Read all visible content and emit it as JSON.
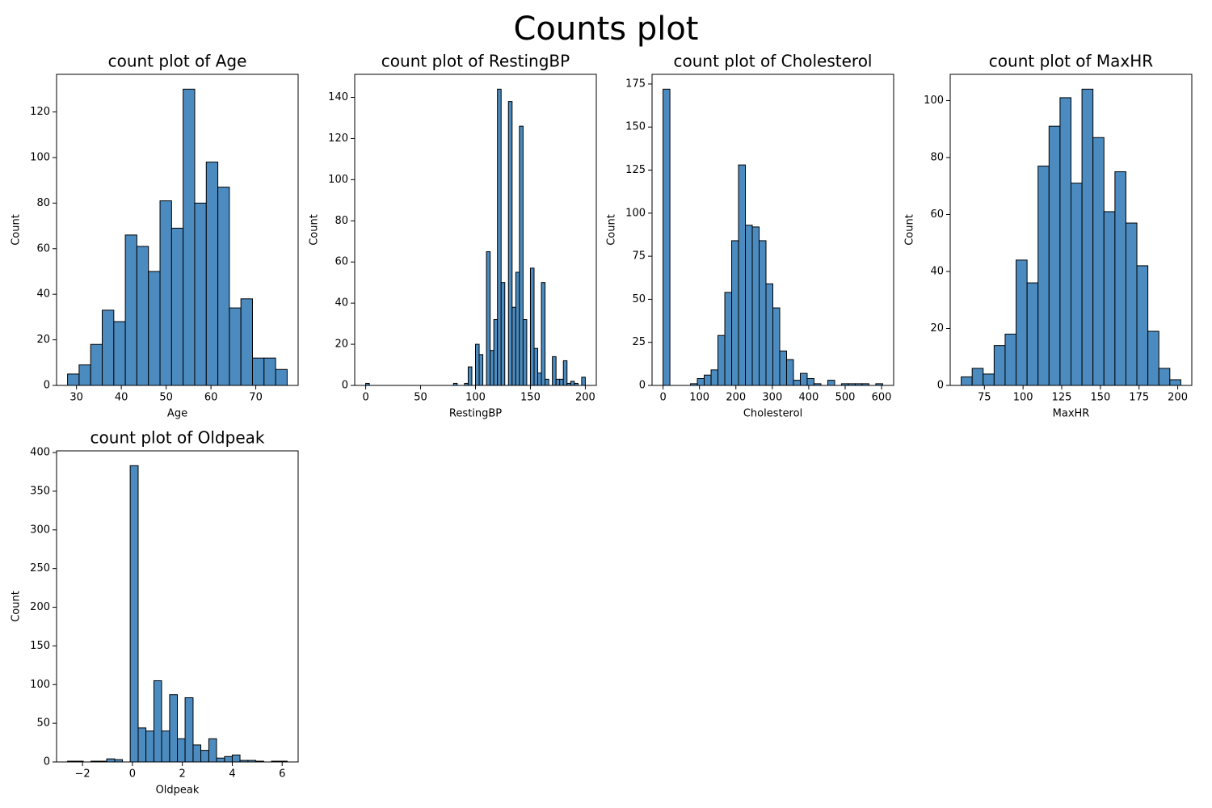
{
  "title": "Counts plot",
  "chart_data": [
    {
      "type": "histogram",
      "title": "count plot of Age",
      "xlabel": "Age",
      "ylabel": "Count",
      "color": "#4c8bbf",
      "bins": [
        28,
        30.58,
        33.16,
        35.74,
        38.32,
        40.89,
        43.47,
        46.05,
        48.63,
        51.21,
        53.79,
        56.37,
        58.95,
        61.53,
        64.11,
        66.68,
        69.26,
        71.84,
        74.42,
        77
      ],
      "values": [
        5,
        9,
        18,
        33,
        28,
        66,
        61,
        50,
        81,
        69,
        130,
        80,
        98,
        87,
        34,
        38,
        12,
        12,
        7
      ],
      "xlim": [
        25.55,
        79.45
      ],
      "xticks": [
        30,
        40,
        50,
        60,
        70
      ],
      "ylim": [
        0,
        136.5
      ],
      "yticks": [
        0,
        20,
        40,
        60,
        80,
        100,
        120
      ]
    },
    {
      "type": "histogram",
      "title": "count plot of RestingBP",
      "xlabel": "RestingBP",
      "ylabel": "Count",
      "color": "#4c8bbf",
      "bins": [
        0,
        3.33,
        6.67,
        10,
        13.33,
        16.67,
        20,
        23.33,
        26.67,
        30,
        33.33,
        36.67,
        40,
        43.33,
        46.67,
        50,
        53.33,
        56.67,
        60,
        63.33,
        66.67,
        70,
        73.33,
        76.67,
        80,
        83.33,
        86.67,
        90,
        93.33,
        96.67,
        100,
        103.33,
        106.67,
        110,
        113.33,
        116.67,
        120,
        123.33,
        126.67,
        130,
        133.33,
        136.67,
        140,
        143.33,
        146.67,
        150,
        153.33,
        156.67,
        160,
        163.33,
        166.67,
        170,
        173.33,
        176.67,
        180,
        183.33,
        186.67,
        190,
        193.33,
        196.67,
        200
      ],
      "values": [
        1,
        0,
        0,
        0,
        0,
        0,
        0,
        0,
        0,
        0,
        0,
        0,
        0,
        0,
        0,
        0,
        0,
        0,
        0,
        0,
        0,
        0,
        0,
        0,
        1,
        0,
        0,
        1,
        9,
        0,
        20,
        15,
        0,
        65,
        17,
        32,
        144,
        50,
        0,
        138,
        38,
        55,
        126,
        32,
        0,
        57,
        18,
        6,
        50,
        3,
        0,
        14,
        3,
        3,
        12,
        1,
        2,
        1,
        0,
        4
      ],
      "xlim": [
        -10,
        210
      ],
      "xticks": [
        0,
        50,
        100,
        150,
        200
      ],
      "ylim": [
        0,
        151.2
      ],
      "yticks": [
        0,
        20,
        40,
        60,
        80,
        100,
        120,
        140
      ]
    },
    {
      "type": "histogram",
      "title": "count plot of Cholesterol",
      "xlabel": "Cholesterol",
      "ylabel": "Count",
      "color": "#4c8bbf",
      "bins": [
        0,
        18.84,
        37.69,
        56.53,
        75.38,
        94.22,
        113.06,
        131.91,
        150.75,
        169.59,
        188.44,
        207.28,
        226.13,
        244.97,
        263.81,
        282.66,
        301.5,
        320.34,
        339.19,
        358.03,
        376.88,
        395.72,
        414.56,
        433.41,
        452.25,
        471.09,
        489.94,
        508.78,
        527.63,
        546.47,
        565.31,
        584.16,
        603
      ],
      "values": [
        172,
        0,
        0,
        0,
        1,
        4,
        6,
        9,
        29,
        54,
        84,
        128,
        93,
        92,
        84,
        59,
        45,
        20,
        15,
        3,
        7,
        4,
        1,
        0,
        3,
        0,
        1,
        1,
        1,
        1,
        0,
        1
      ],
      "xlim": [
        -30.15,
        633.15
      ],
      "xticks": [
        0,
        100,
        200,
        300,
        400,
        500,
        600
      ],
      "ylim": [
        0,
        180.6
      ],
      "yticks": [
        0,
        25,
        50,
        75,
        100,
        125,
        150,
        175
      ]
    },
    {
      "type": "histogram",
      "title": "count plot of MaxHR",
      "xlabel": "MaxHR",
      "ylabel": "Count",
      "color": "#4c8bbf",
      "bins": [
        60,
        67.1,
        74.2,
        81.3,
        88.4,
        95.5,
        102.6,
        109.7,
        116.8,
        123.9,
        131,
        138.1,
        145.2,
        152.3,
        159.4,
        166.5,
        173.6,
        180.7,
        187.8,
        194.9,
        202
      ],
      "values": [
        3,
        6,
        4,
        14,
        18,
        44,
        36,
        77,
        91,
        101,
        71,
        104,
        87,
        61,
        75,
        57,
        42,
        19,
        6,
        2
      ],
      "xlim": [
        52.9,
        209.1
      ],
      "xticks": [
        75,
        100,
        125,
        150,
        175,
        200
      ],
      "ylim": [
        0,
        109.2
      ],
      "yticks": [
        0,
        20,
        40,
        60,
        80,
        100
      ]
    },
    {
      "type": "histogram",
      "title": "count plot of Oldpeak",
      "xlabel": "Oldpeak",
      "ylabel": "Count",
      "color": "#4c8bbf",
      "bins": [
        -2.6,
        -2.29,
        -1.97,
        -1.66,
        -1.34,
        -1.03,
        -0.71,
        -0.4,
        -0.09,
        0.23,
        0.54,
        0.86,
        1.17,
        1.49,
        1.8,
        2.11,
        2.43,
        2.74,
        3.06,
        3.37,
        3.69,
        4.0,
        4.31,
        4.63,
        4.94,
        5.26,
        5.57,
        5.89,
        6.2
      ],
      "values": [
        1,
        1,
        0,
        1,
        1,
        4,
        3,
        0,
        383,
        44,
        40,
        105,
        40,
        87,
        30,
        83,
        22,
        15,
        30,
        5,
        7,
        9,
        2,
        2,
        1,
        0,
        1,
        1
      ],
      "xlim": [
        -3.04,
        6.64
      ],
      "xticks": [
        {
          "value": -2,
          "label": "−2"
        },
        0,
        2,
        4,
        6
      ],
      "ylim": [
        0,
        402.15
      ],
      "yticks": [
        0,
        50,
        100,
        150,
        200,
        250,
        300,
        350,
        400
      ]
    }
  ]
}
